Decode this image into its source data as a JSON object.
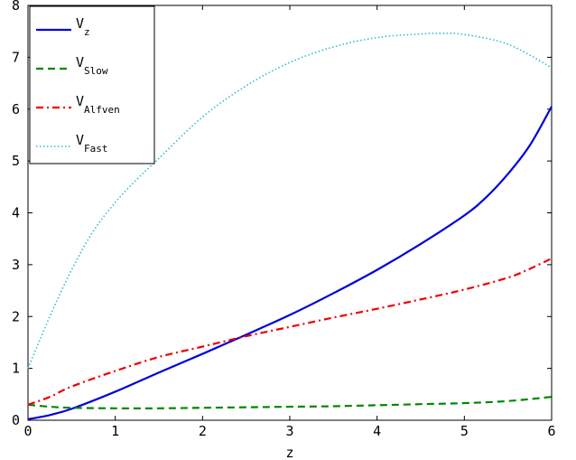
{
  "chart_data": {
    "type": "line",
    "title": "",
    "xlabel": "z",
    "ylabel": "",
    "xlim": [
      0,
      6
    ],
    "ylim": [
      0,
      8
    ],
    "xticks": [
      0,
      1,
      2,
      3,
      4,
      5,
      6
    ],
    "yticks": [
      0,
      1,
      2,
      3,
      4,
      5,
      6,
      7,
      8
    ],
    "grid": false,
    "legend_position": "top-left",
    "series": [
      {
        "name": "V_z",
        "label_main": "V",
        "label_sub": "z",
        "color": "#0000dd",
        "style": "solid",
        "x": [
          0,
          0.25,
          0.5,
          1,
          1.5,
          2,
          2.5,
          3,
          3.5,
          4,
          4.5,
          5,
          5.25,
          5.5,
          5.75,
          6
        ],
        "y": [
          0.02,
          0.1,
          0.22,
          0.55,
          0.92,
          1.28,
          1.65,
          2.03,
          2.45,
          2.9,
          3.4,
          3.95,
          4.3,
          4.75,
          5.3,
          6.05
        ]
      },
      {
        "name": "V_Slow",
        "label_main": "V",
        "label_sub": "Slow",
        "color": "#008800",
        "style": "dashed",
        "x": [
          0,
          0.25,
          0.5,
          1,
          1.5,
          2,
          2.5,
          3,
          3.5,
          4,
          4.5,
          5,
          5.5,
          6
        ],
        "y": [
          0.3,
          0.26,
          0.24,
          0.23,
          0.23,
          0.24,
          0.25,
          0.26,
          0.27,
          0.29,
          0.31,
          0.33,
          0.37,
          0.45
        ]
      },
      {
        "name": "V_Alfven",
        "label_main": "V",
        "label_sub": "Alfven",
        "color": "#ee0000",
        "style": "dashdot",
        "x": [
          0,
          0.25,
          0.5,
          1,
          1.5,
          2,
          2.5,
          3,
          3.5,
          4,
          4.5,
          5,
          5.5,
          5.75,
          6
        ],
        "y": [
          0.3,
          0.45,
          0.65,
          0.95,
          1.22,
          1.42,
          1.62,
          1.8,
          1.98,
          2.15,
          2.33,
          2.52,
          2.75,
          2.92,
          3.12
        ]
      },
      {
        "name": "V_Fast",
        "label_main": "V",
        "label_sub": "Fast",
        "color": "#33bbcc",
        "style": "dotted",
        "x": [
          0,
          0.25,
          0.5,
          0.75,
          1,
          1.25,
          1.5,
          2,
          2.5,
          3,
          3.5,
          4,
          4.5,
          4.75,
          5,
          5.5,
          6
        ],
        "y": [
          1.0,
          2.0,
          2.9,
          3.65,
          4.2,
          4.65,
          5.05,
          5.85,
          6.45,
          6.9,
          7.2,
          7.38,
          7.45,
          7.46,
          7.44,
          7.25,
          6.8
        ]
      }
    ]
  }
}
